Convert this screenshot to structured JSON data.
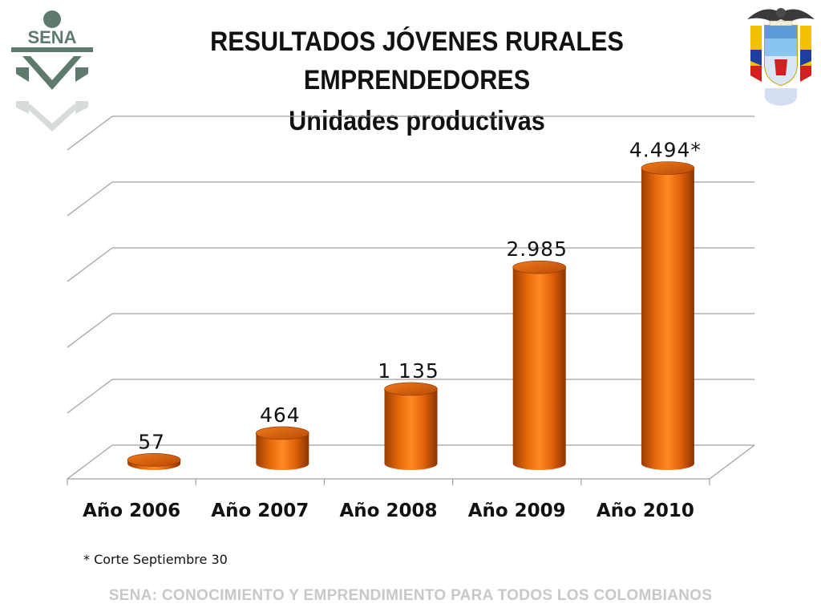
{
  "header": {
    "title_line1": "RESULTADOS JÓVENES RURALES",
    "title_line2": "EMPRENDEDORES",
    "subtitle": "Unidades productivas"
  },
  "logos": {
    "left": {
      "text": "SENA",
      "color": "#5e7a6c"
    },
    "right": {
      "name": "colombia-coat-of-arms"
    }
  },
  "chart_data": {
    "type": "bar",
    "categories": [
      "Año 2006",
      "Año 2007",
      "Año 2008",
      "Año 2009",
      "Año 2010"
    ],
    "values": [
      57,
      464,
      1135,
      2985,
      4494
    ],
    "data_labels": [
      "57",
      "464",
      "1 135",
      "2.985",
      "4.494*"
    ],
    "title": "",
    "xlabel": "",
    "ylabel": "",
    "ylim": [
      0,
      5000
    ],
    "grid": true,
    "bar_color": "#e8650a",
    "style": "3d-cylinder"
  },
  "footnote": "* Corte Septiembre 30",
  "footer": {
    "slogan": "SENA: CONOCIMIENTO Y EMPRENDIMIENTO PARA TODOS LOS COLOMBIANOS"
  }
}
